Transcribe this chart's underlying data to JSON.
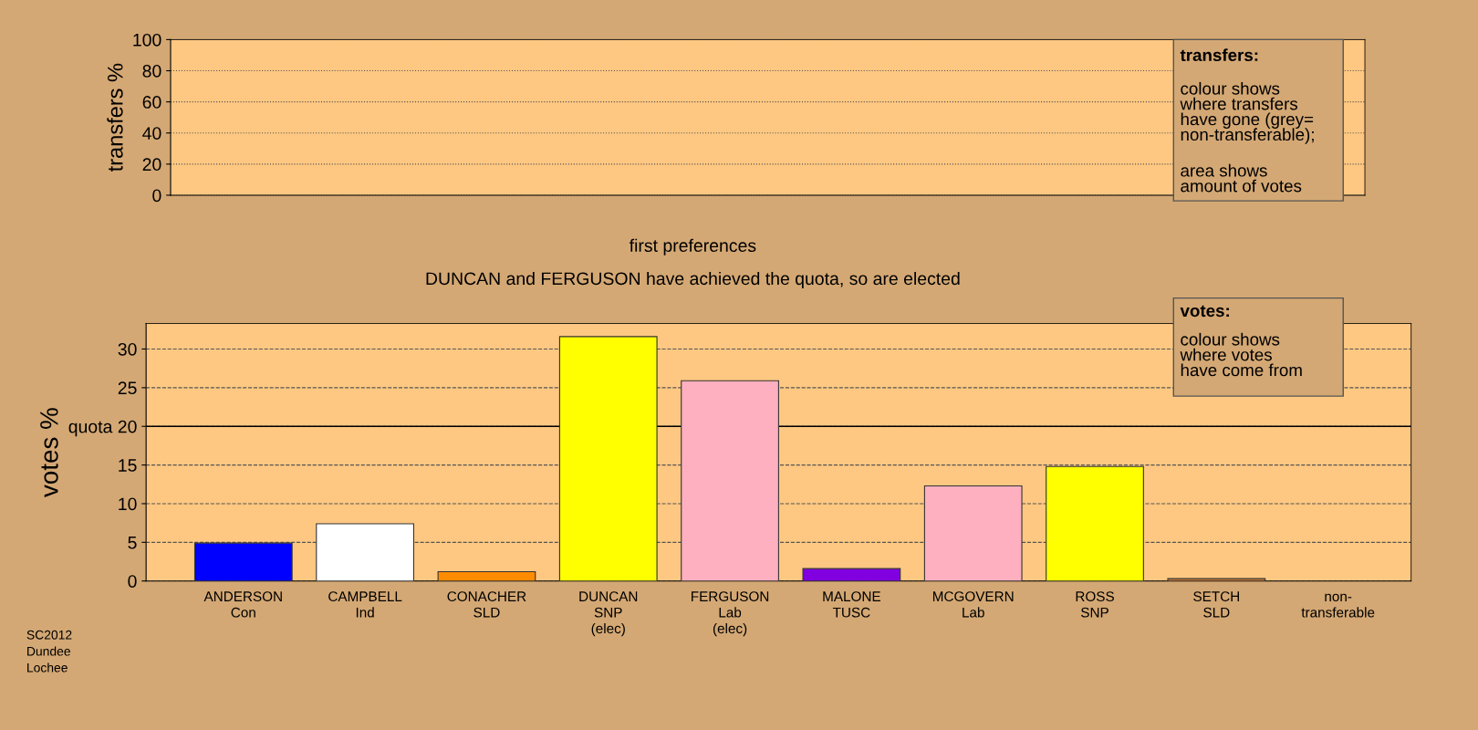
{
  "chart_data": [
    {
      "type": "bar",
      "ylabel": "transfers %",
      "categories": [
        null,
        null,
        null,
        null,
        null,
        null,
        null,
        null,
        null,
        null
      ],
      "values": [
        null,
        null,
        null,
        null,
        null,
        null,
        null,
        null,
        null,
        null
      ],
      "ylim": [
        0,
        100
      ],
      "yticks": [
        0,
        20,
        40,
        60,
        80,
        100
      ],
      "grid": "y",
      "line_style": "dotted",
      "annotations": [
        "transfers:",
        "colour shows\nwhere transfers\nhave gone (grey=\nnon-transferable);",
        "area shows\namount of votes"
      ]
    },
    {
      "type": "bar",
      "title": "first preferences",
      "subtitle": "DUNCAN and FERGUSON have achieved the quota, so are elected",
      "ylabel": "votes %",
      "categories": [
        "ANDERSON\nCon",
        "CAMPBELL\nInd",
        "CONACHER\nSLD",
        "DUNCAN\nSNP\n(elec)",
        "FERGUSON\nLab\n(elec)",
        "MALONE\nTUSC",
        "MCGOVERN\nLab",
        "ROSS\nSNP",
        "SETCH\nSLD",
        "non-\ntransferable"
      ],
      "values": [
        4.9,
        7.4,
        1.2,
        31.6,
        25.9,
        1.6,
        12.3,
        14.8,
        0.3,
        null
      ],
      "colors": [
        "#0000ff",
        "#ffffff",
        "#ff8c00",
        "#ffff00",
        "#ffb0c0",
        "#8000e0",
        "#ffb0c0",
        "#ffff00",
        "#c87830",
        "#808080"
      ],
      "ylim": [
        0,
        33.3
      ],
      "yticks": [
        0,
        5,
        10,
        15,
        {
          "value": 20,
          "label": "quota 20"
        },
        25,
        30
      ],
      "grid": "y",
      "line_style": "dashed",
      "ref_lines": [
        {
          "axis": "y",
          "value": 20,
          "line_style": "solid",
          "color": "#000000"
        }
      ],
      "annotations": [
        "votes:",
        "colour shows\nwhere votes\nhave come from",
        "SC2012\nDundee\nLochee"
      ]
    }
  ]
}
